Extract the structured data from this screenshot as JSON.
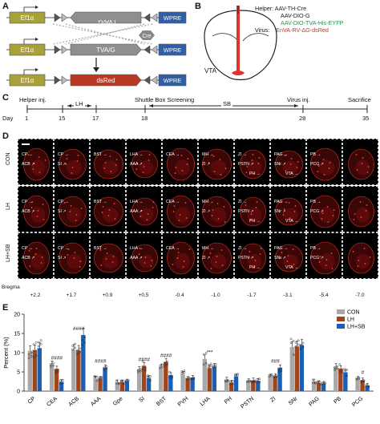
{
  "panels": {
    "A": "A",
    "B": "B",
    "C": "C",
    "D": "D",
    "E": "E"
  },
  "constructs": [
    {
      "promoter": "Ef1α",
      "gene": "TVA/G",
      "gene_inverted": true,
      "wpre": "WPRE"
    },
    {
      "promoter": "Ef1α",
      "gene": "TVA/G",
      "gene_inverted": false,
      "wpre": "WPRE"
    },
    {
      "promoter": "Ef1α",
      "gene": "dsRed",
      "gene_inverted": false,
      "wpre": "WPRE"
    }
  ],
  "cre_label": "Cre",
  "panel_b": {
    "helper_prefix": "Helper:",
    "helper_lines": [
      "AAV-TH-Cre",
      "AAV-DIO-G",
      "AAV-DIO-TVA-His-EYFP"
    ],
    "virus_prefix": "Virus:",
    "virus_line": "EnVA-RV-ΔG-dsRed",
    "vta_label": "VTA",
    "colors": {
      "helper1": "#222222",
      "helper2": "#222222",
      "helper3": "#2e8b57",
      "virus": "#c0392b",
      "brain_outline": "#222222",
      "injection": "#e0312b"
    }
  },
  "timeline": {
    "day_label": "Day",
    "days": [
      "1",
      "15",
      "17",
      "18",
      "28",
      "35"
    ],
    "events": [
      "Helper inj.",
      "LH",
      "Shuttle Box Screening",
      "SB",
      "Virus inj.",
      "Sacrifice"
    ]
  },
  "panel_d": {
    "row_labels": [
      "CON",
      "LH",
      "LH+SB"
    ],
    "bregma_label": "Bregma",
    "bregma_values": [
      "+2.2",
      "+1.7",
      "+0.9",
      "+0.5",
      "-0.4",
      "-1.0",
      "-1.7",
      "-3.1",
      "-5.4",
      "-7.0"
    ],
    "region_labels": [
      [
        "CP",
        "ACB"
      ],
      [
        "CP",
        "SI"
      ],
      [
        "BST"
      ],
      [
        "LHA",
        "AAA"
      ],
      [
        "CEA"
      ],
      [
        "MH",
        "ZI"
      ],
      [
        "ZI",
        "PSTN",
        "PH"
      ],
      [
        "PAG",
        "SNr",
        "VTA"
      ],
      [
        "PB",
        "PCG"
      ],
      []
    ]
  },
  "chart_data": {
    "type": "bar",
    "ylabel": "Percent (%)",
    "ylim": [
      0,
      20
    ],
    "yticks": [
      "0",
      "5",
      "10",
      "15",
      "20"
    ],
    "categories": [
      "CP",
      "CEA",
      "ACB",
      "AAA",
      "Gpe",
      "SI",
      "BST",
      "PVH",
      "LHA",
      "PH",
      "PSTN",
      "ZI",
      "SNr",
      "PAG",
      "PB",
      "PCG"
    ],
    "series": [
      {
        "name": "CON",
        "color": "#a8a8a8",
        "values": [
          10.5,
          7.0,
          10.8,
          3.3,
          2.3,
          5.7,
          6.3,
          4.5,
          8.4,
          3.0,
          2.6,
          3.8,
          11.5,
          2.5,
          6.4,
          3.2
        ]
      },
      {
        "name": "LH",
        "color": "#a0441c",
        "values": [
          10.7,
          5.8,
          10.6,
          3.2,
          2.3,
          6.6,
          7.6,
          3.2,
          6.0,
          2.2,
          2.8,
          3.9,
          11.6,
          2.1,
          5.9,
          2.8
        ]
      },
      {
        "name": "LH+SB",
        "color": "#1a5fb4",
        "values": [
          11.2,
          2.4,
          14.6,
          6.1,
          2.5,
          3.4,
          4.2,
          3.5,
          6.4,
          3.8,
          2.7,
          6.1,
          12.0,
          1.9,
          4.9,
          1.4
        ]
      }
    ],
    "annotations": [
      {
        "category": "CEA",
        "text": "####"
      },
      {
        "category": "ACB",
        "text": "####"
      },
      {
        "category": "AAA",
        "text": "####"
      },
      {
        "category": "SI",
        "text": "####"
      },
      {
        "category": "BST",
        "text": "####"
      },
      {
        "category": "LHA",
        "text": "***"
      },
      {
        "category": "ZI",
        "text": "###"
      },
      {
        "category": "PCG",
        "text": "#"
      }
    ],
    "legend_position": "top-right"
  }
}
